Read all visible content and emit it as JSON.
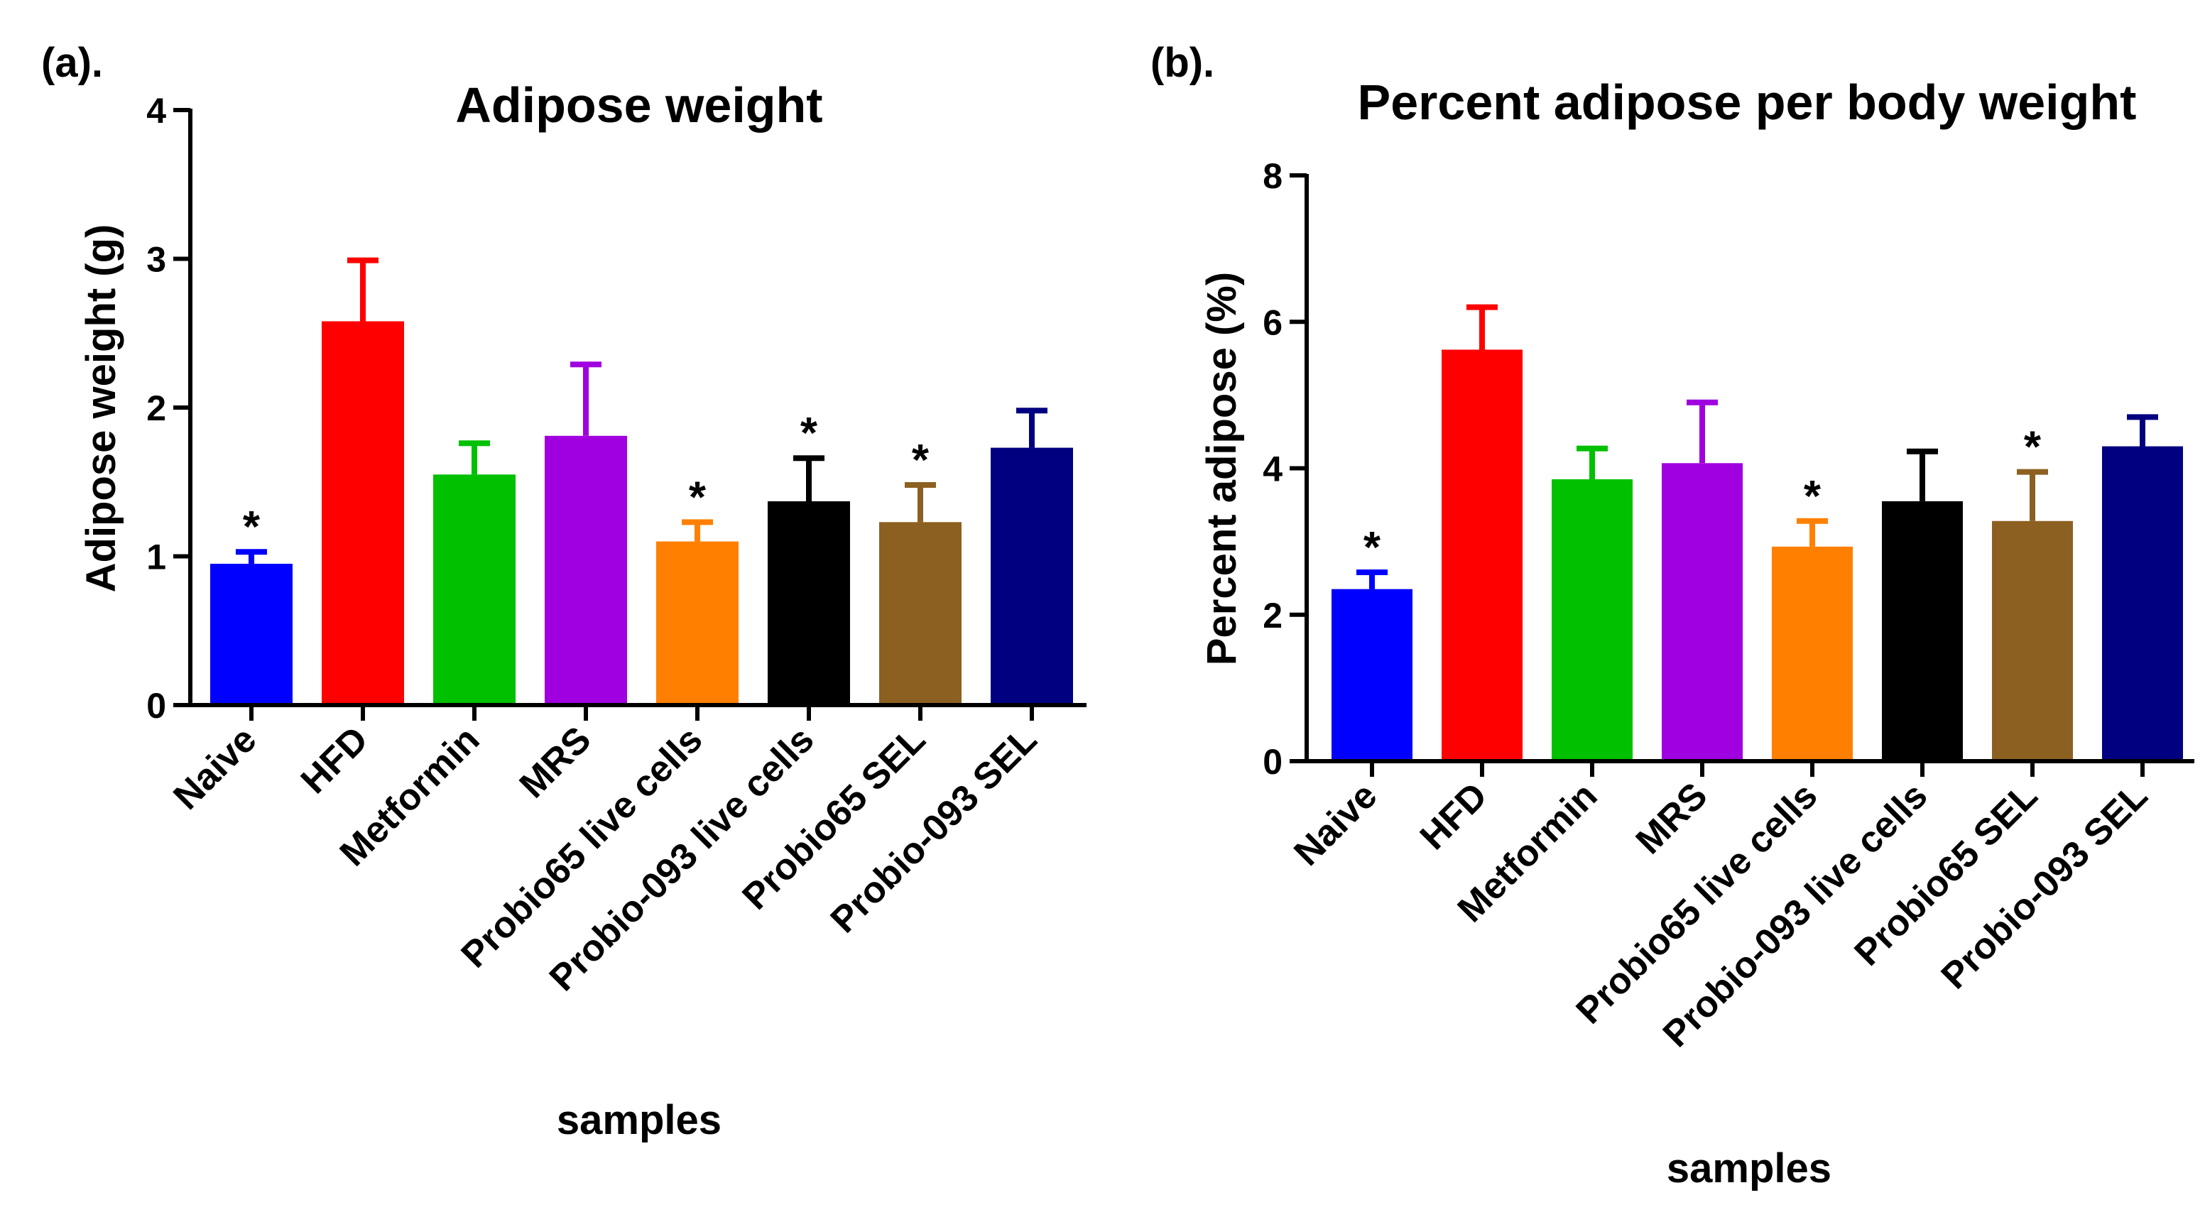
{
  "chart_data": [
    {
      "panel_label": "(a).",
      "type": "bar",
      "title": "Adipose weight",
      "xlabel": "samples",
      "ylabel": "Adipose weight (g)",
      "ylim": [
        0,
        4
      ],
      "yticks": [
        0,
        1,
        2,
        3,
        4
      ],
      "categories": [
        "Naive",
        "HFD",
        "Metformin",
        "MRS",
        "Probio65 live cells",
        "Probio-093 live cells",
        "Probio65 SEL",
        "Probio-093 SEL"
      ],
      "values": [
        0.95,
        2.58,
        1.55,
        1.81,
        1.1,
        1.37,
        1.23,
        1.73
      ],
      "errors": [
        0.08,
        0.41,
        0.21,
        0.48,
        0.13,
        0.29,
        0.25,
        0.25
      ],
      "significance": [
        "*",
        "",
        "",
        "",
        "*",
        "*",
        "*",
        ""
      ],
      "colors": [
        "#0000ff",
        "#ff0000",
        "#00c000",
        "#a000e0",
        "#ff8000",
        "#000000",
        "#8c6020",
        "#000080"
      ]
    },
    {
      "panel_label": "(b).",
      "type": "bar",
      "title": "Percent adipose per body weight",
      "xlabel": "samples",
      "ylabel": "Percent adipose (%)",
      "ylim": [
        0,
        8
      ],
      "yticks": [
        0,
        2,
        4,
        6,
        8
      ],
      "categories": [
        "Naive",
        "HFD",
        "Metformin",
        "MRS",
        "Probio65 live cells",
        "Probio-093 live cells",
        "Probio65 SEL",
        "Probio-093 SEL"
      ],
      "values": [
        2.35,
        5.62,
        3.85,
        4.07,
        2.93,
        3.55,
        3.28,
        4.3
      ],
      "errors": [
        0.23,
        0.58,
        0.42,
        0.83,
        0.35,
        0.68,
        0.67,
        0.4
      ],
      "significance": [
        "*",
        "",
        "",
        "",
        "*",
        "",
        "*",
        ""
      ],
      "colors": [
        "#0000ff",
        "#ff0000",
        "#00c000",
        "#a000e0",
        "#ff8000",
        "#000000",
        "#8c6020",
        "#000080"
      ]
    }
  ]
}
